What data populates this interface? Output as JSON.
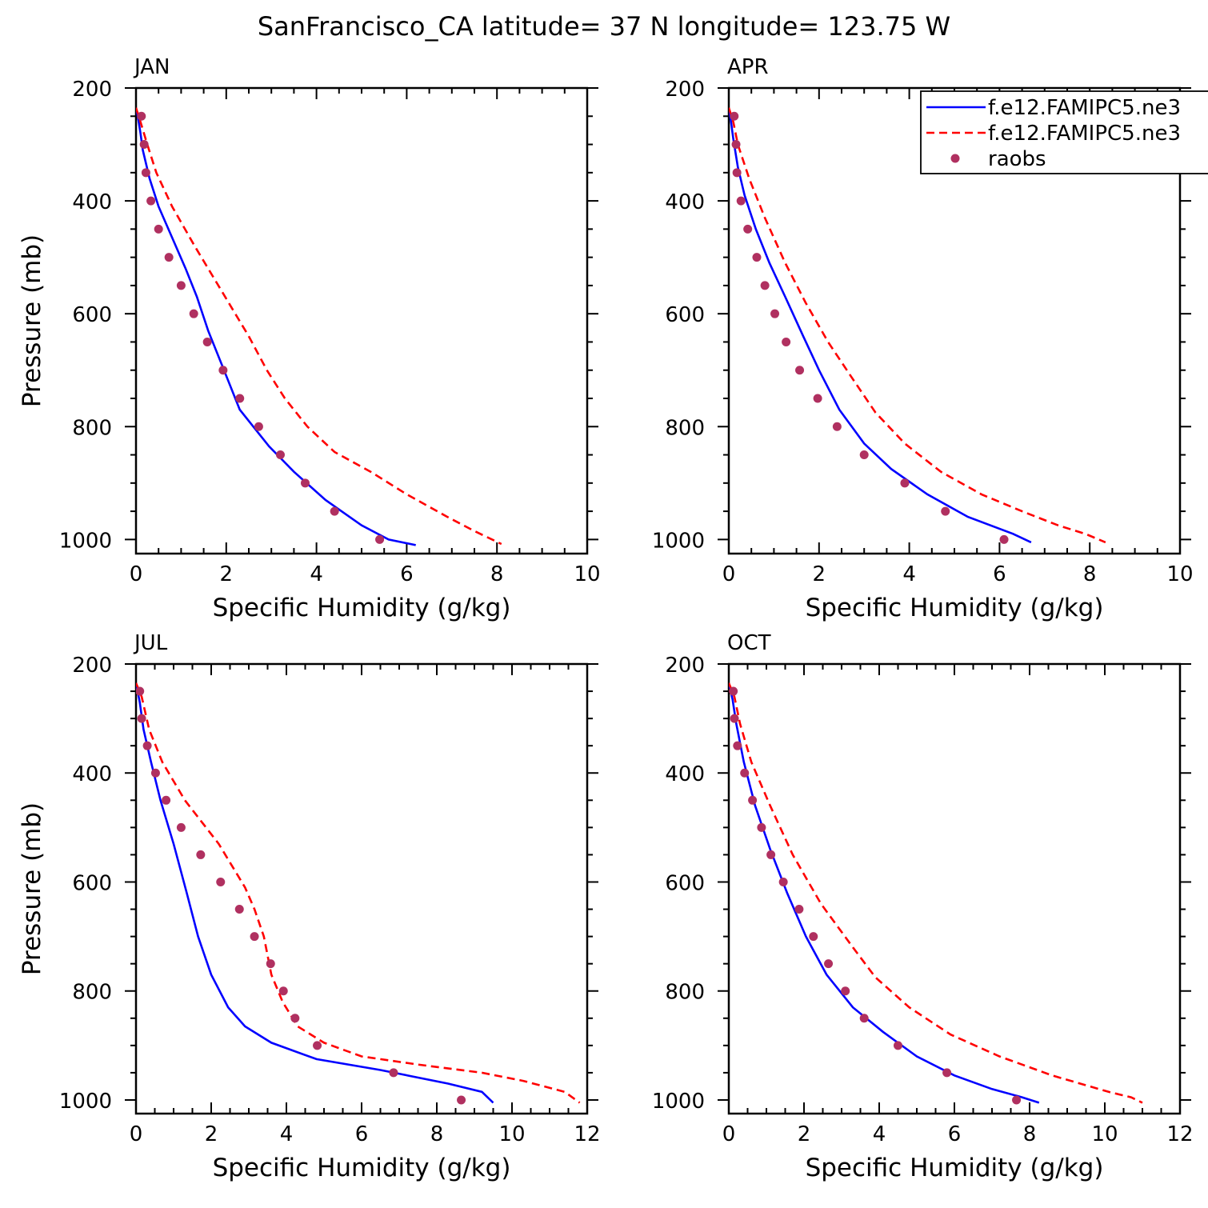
{
  "figure": {
    "title": "SanFrancisco_CA  latitude= 37 N longitude= 123.75 W"
  },
  "legend": {
    "placement": "top-right of APR panel",
    "entries": [
      {
        "label": "f.e12.FAMIPC5.ne3",
        "style": "solid",
        "color": "#0000ff"
      },
      {
        "label": "f.e12.FAMIPC5.ne3",
        "style": "dashed",
        "color": "#ff0000"
      },
      {
        "label": "raobs",
        "style": "dots",
        "color": "#b03060"
      }
    ]
  },
  "colors": {
    "model_solid": "#0000ff",
    "model_dashed": "#ff0000",
    "obs": "#b03060"
  },
  "chart_data": [
    {
      "type": "line",
      "panel_label": "JAN",
      "xlabel": "Specific Humidity (g/kg)",
      "ylabel": "Pressure (mb)",
      "xlim": [
        0,
        10
      ],
      "ylim": [
        200,
        1025
      ],
      "y_inverted": true,
      "xticks": [
        0,
        2,
        4,
        6,
        8,
        10
      ],
      "yticks": [
        200,
        400,
        600,
        800,
        1000
      ],
      "series": [
        {
          "style": "solid",
          "points": [
            [
              0.0,
              235
            ],
            [
              0.05,
              255
            ],
            [
              0.1,
              280
            ],
            [
              0.15,
              310
            ],
            [
              0.3,
              360
            ],
            [
              0.5,
              410
            ],
            [
              0.8,
              465
            ],
            [
              1.1,
              520
            ],
            [
              1.35,
              570
            ],
            [
              1.6,
              630
            ],
            [
              1.9,
              690
            ],
            [
              2.3,
              770
            ],
            [
              2.95,
              835
            ],
            [
              3.5,
              880
            ],
            [
              4.2,
              930
            ],
            [
              5.0,
              975
            ],
            [
              5.6,
              1000
            ],
            [
              6.2,
              1010
            ]
          ]
        },
        {
          "style": "dashed",
          "points": [
            [
              0.0,
              235
            ],
            [
              0.1,
              260
            ],
            [
              0.25,
              300
            ],
            [
              0.45,
              350
            ],
            [
              0.8,
              410
            ],
            [
              1.3,
              480
            ],
            [
              1.9,
              560
            ],
            [
              2.5,
              640
            ],
            [
              2.9,
              700
            ],
            [
              3.3,
              750
            ],
            [
              3.8,
              800
            ],
            [
              4.4,
              845
            ],
            [
              5.2,
              880
            ],
            [
              6.0,
              920
            ],
            [
              6.9,
              960
            ],
            [
              7.5,
              985
            ],
            [
              8.1,
              1008
            ]
          ]
        },
        {
          "style": "dots",
          "points": [
            [
              0.12,
              250
            ],
            [
              0.18,
              300
            ],
            [
              0.22,
              350
            ],
            [
              0.33,
              400
            ],
            [
              0.5,
              450
            ],
            [
              0.73,
              500
            ],
            [
              1.0,
              550
            ],
            [
              1.28,
              600
            ],
            [
              1.58,
              650
            ],
            [
              1.93,
              700
            ],
            [
              2.3,
              750
            ],
            [
              2.72,
              800
            ],
            [
              3.2,
              850
            ],
            [
              3.75,
              900
            ],
            [
              4.4,
              950
            ],
            [
              5.4,
              1000
            ]
          ]
        }
      ]
    },
    {
      "type": "line",
      "panel_label": "APR",
      "xlabel": "Specific Humidity (g/kg)",
      "ylabel": "",
      "xlim": [
        0,
        10
      ],
      "ylim": [
        200,
        1025
      ],
      "y_inverted": true,
      "xticks": [
        0,
        2,
        4,
        6,
        8,
        10
      ],
      "yticks": [
        200,
        400,
        600,
        800,
        1000
      ],
      "series": [
        {
          "style": "solid",
          "points": [
            [
              0.0,
              235
            ],
            [
              0.05,
              260
            ],
            [
              0.1,
              290
            ],
            [
              0.2,
              340
            ],
            [
              0.35,
              390
            ],
            [
              0.6,
              450
            ],
            [
              0.9,
              510
            ],
            [
              1.25,
              570
            ],
            [
              1.65,
              640
            ],
            [
              2.0,
              700
            ],
            [
              2.45,
              770
            ],
            [
              3.0,
              830
            ],
            [
              3.6,
              875
            ],
            [
              4.4,
              920
            ],
            [
              5.3,
              960
            ],
            [
              6.3,
              990
            ],
            [
              6.7,
              1005
            ]
          ]
        },
        {
          "style": "dashed",
          "points": [
            [
              0.0,
              235
            ],
            [
              0.1,
              260
            ],
            [
              0.2,
              300
            ],
            [
              0.45,
              360
            ],
            [
              0.8,
              430
            ],
            [
              1.25,
              510
            ],
            [
              1.7,
              580
            ],
            [
              2.2,
              650
            ],
            [
              2.7,
              710
            ],
            [
              3.25,
              775
            ],
            [
              3.9,
              830
            ],
            [
              4.7,
              880
            ],
            [
              5.6,
              920
            ],
            [
              6.5,
              950
            ],
            [
              7.3,
              975
            ],
            [
              7.9,
              990
            ],
            [
              8.35,
              1005
            ]
          ]
        },
        {
          "style": "dots",
          "points": [
            [
              0.12,
              250
            ],
            [
              0.16,
              300
            ],
            [
              0.18,
              350
            ],
            [
              0.27,
              400
            ],
            [
              0.42,
              450
            ],
            [
              0.62,
              500
            ],
            [
              0.8,
              550
            ],
            [
              1.02,
              600
            ],
            [
              1.27,
              650
            ],
            [
              1.57,
              700
            ],
            [
              1.97,
              750
            ],
            [
              2.4,
              800
            ],
            [
              3.0,
              850
            ],
            [
              3.9,
              900
            ],
            [
              4.8,
              950
            ],
            [
              6.1,
              1000
            ]
          ]
        }
      ]
    },
    {
      "type": "line",
      "panel_label": "JUL",
      "xlabel": "Specific Humidity (g/kg)",
      "ylabel": "Pressure (mb)",
      "xlim": [
        0,
        12
      ],
      "ylim": [
        200,
        1025
      ],
      "y_inverted": true,
      "xticks": [
        0,
        2,
        4,
        6,
        8,
        10,
        12
      ],
      "yticks": [
        200,
        400,
        600,
        800,
        1000
      ],
      "series": [
        {
          "style": "solid",
          "points": [
            [
              0.0,
              235
            ],
            [
              0.1,
              270
            ],
            [
              0.2,
              320
            ],
            [
              0.4,
              380
            ],
            [
              0.65,
              450
            ],
            [
              1.0,
              530
            ],
            [
              1.35,
              620
            ],
            [
              1.65,
              700
            ],
            [
              2.0,
              770
            ],
            [
              2.45,
              830
            ],
            [
              2.9,
              865
            ],
            [
              3.6,
              895
            ],
            [
              4.8,
              925
            ],
            [
              6.5,
              945
            ],
            [
              8.3,
              970
            ],
            [
              9.2,
              985
            ],
            [
              9.5,
              1005
            ]
          ]
        },
        {
          "style": "dashed",
          "points": [
            [
              0.0,
              235
            ],
            [
              0.15,
              260
            ],
            [
              0.35,
              320
            ],
            [
              0.7,
              380
            ],
            [
              1.3,
              450
            ],
            [
              2.2,
              530
            ],
            [
              2.9,
              610
            ],
            [
              3.15,
              650
            ],
            [
              3.4,
              700
            ],
            [
              3.6,
              770
            ],
            [
              3.9,
              820
            ],
            [
              4.3,
              865
            ],
            [
              5.0,
              895
            ],
            [
              6.0,
              920
            ],
            [
              7.5,
              935
            ],
            [
              9.2,
              950
            ],
            [
              10.3,
              965
            ],
            [
              11.4,
              985
            ],
            [
              11.8,
              1005
            ]
          ]
        },
        {
          "style": "dots",
          "points": [
            [
              0.1,
              250
            ],
            [
              0.15,
              300
            ],
            [
              0.3,
              350
            ],
            [
              0.52,
              400
            ],
            [
              0.8,
              450
            ],
            [
              1.2,
              500
            ],
            [
              1.72,
              550
            ],
            [
              2.25,
              600
            ],
            [
              2.75,
              650
            ],
            [
              3.15,
              700
            ],
            [
              3.58,
              750
            ],
            [
              3.92,
              800
            ],
            [
              4.23,
              850
            ],
            [
              4.82,
              900
            ],
            [
              6.85,
              950
            ],
            [
              8.65,
              1000
            ]
          ]
        }
      ]
    },
    {
      "type": "line",
      "panel_label": "OCT",
      "xlabel": "Specific Humidity (g/kg)",
      "ylabel": "",
      "xlim": [
        0,
        12
      ],
      "ylim": [
        200,
        1025
      ],
      "y_inverted": true,
      "xticks": [
        0,
        2,
        4,
        6,
        8,
        10,
        12
      ],
      "yticks": [
        200,
        400,
        600,
        800,
        1000
      ],
      "series": [
        {
          "style": "solid",
          "points": [
            [
              0.0,
              235
            ],
            [
              0.1,
              265
            ],
            [
              0.2,
              310
            ],
            [
              0.4,
              380
            ],
            [
              0.7,
              460
            ],
            [
              1.1,
              540
            ],
            [
              1.55,
              620
            ],
            [
              2.05,
              700
            ],
            [
              2.6,
              770
            ],
            [
              3.3,
              830
            ],
            [
              4.1,
              875
            ],
            [
              5.0,
              920
            ],
            [
              6.0,
              955
            ],
            [
              7.0,
              980
            ],
            [
              7.8,
              995
            ],
            [
              8.25,
              1005
            ]
          ]
        },
        {
          "style": "dashed",
          "points": [
            [
              0.0,
              235
            ],
            [
              0.15,
              260
            ],
            [
              0.3,
              310
            ],
            [
              0.6,
              380
            ],
            [
              1.1,
              460
            ],
            [
              1.7,
              550
            ],
            [
              2.45,
              640
            ],
            [
              3.3,
              720
            ],
            [
              3.9,
              775
            ],
            [
              4.8,
              830
            ],
            [
              5.9,
              880
            ],
            [
              7.2,
              920
            ],
            [
              8.6,
              955
            ],
            [
              10.1,
              985
            ],
            [
              10.7,
              995
            ],
            [
              11.0,
              1005
            ]
          ]
        },
        {
          "style": "dots",
          "points": [
            [
              0.12,
              250
            ],
            [
              0.15,
              300
            ],
            [
              0.23,
              350
            ],
            [
              0.42,
              400
            ],
            [
              0.63,
              450
            ],
            [
              0.87,
              500
            ],
            [
              1.12,
              550
            ],
            [
              1.45,
              600
            ],
            [
              1.87,
              650
            ],
            [
              2.25,
              700
            ],
            [
              2.65,
              750
            ],
            [
              3.1,
              800
            ],
            [
              3.6,
              850
            ],
            [
              4.5,
              900
            ],
            [
              5.8,
              950
            ],
            [
              7.65,
              1000
            ]
          ]
        }
      ]
    }
  ]
}
